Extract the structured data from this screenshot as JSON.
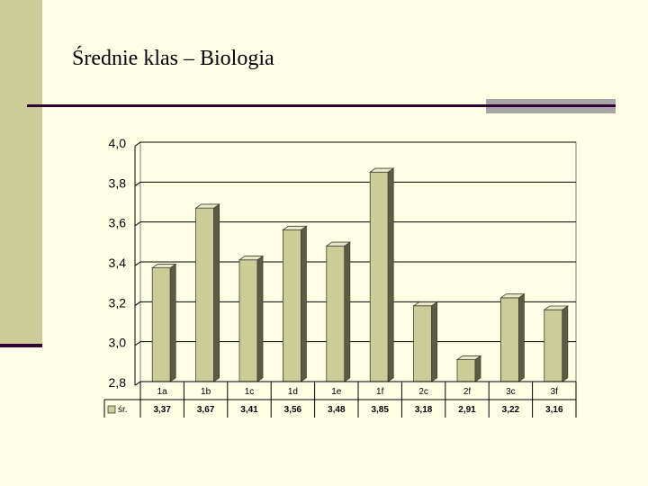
{
  "slide": {
    "title": "Średnie klas  – Biologia"
  },
  "colors": {
    "bar_front": "#cccc99",
    "bar_side": "#5c5c44",
    "bar_top": "#e8e8c8",
    "accent_bar": "#cccc99",
    "rule": "#330033",
    "rule_accent": "#a6a6a6"
  },
  "chart_data": {
    "type": "bar",
    "title": "",
    "xlabel": "",
    "ylabel": "",
    "categories": [
      "1a",
      "1b",
      "1c",
      "1d",
      "1e",
      "1f",
      "2c",
      "2f",
      "3c",
      "3f"
    ],
    "series": [
      {
        "name": "śr.",
        "values": [
          3.37,
          3.67,
          3.41,
          3.56,
          3.48,
          3.85,
          3.18,
          2.91,
          3.22,
          3.16
        ]
      }
    ],
    "value_labels": [
      "3,37",
      "3,67",
      "3,41",
      "3,56",
      "3,48",
      "3,85",
      "3,18",
      "2,91",
      "3,22",
      "3,16"
    ],
    "ylim": [
      2.8,
      4.0
    ],
    "yticks": [
      4.0,
      3.8,
      3.6,
      3.4,
      3.2,
      3.0,
      2.8
    ],
    "ytick_labels": [
      "4,0",
      "3,8",
      "3,6",
      "3,4",
      "3,2",
      "3,0",
      "2,8"
    ],
    "grid": true,
    "legend": "data-table-bottom"
  }
}
